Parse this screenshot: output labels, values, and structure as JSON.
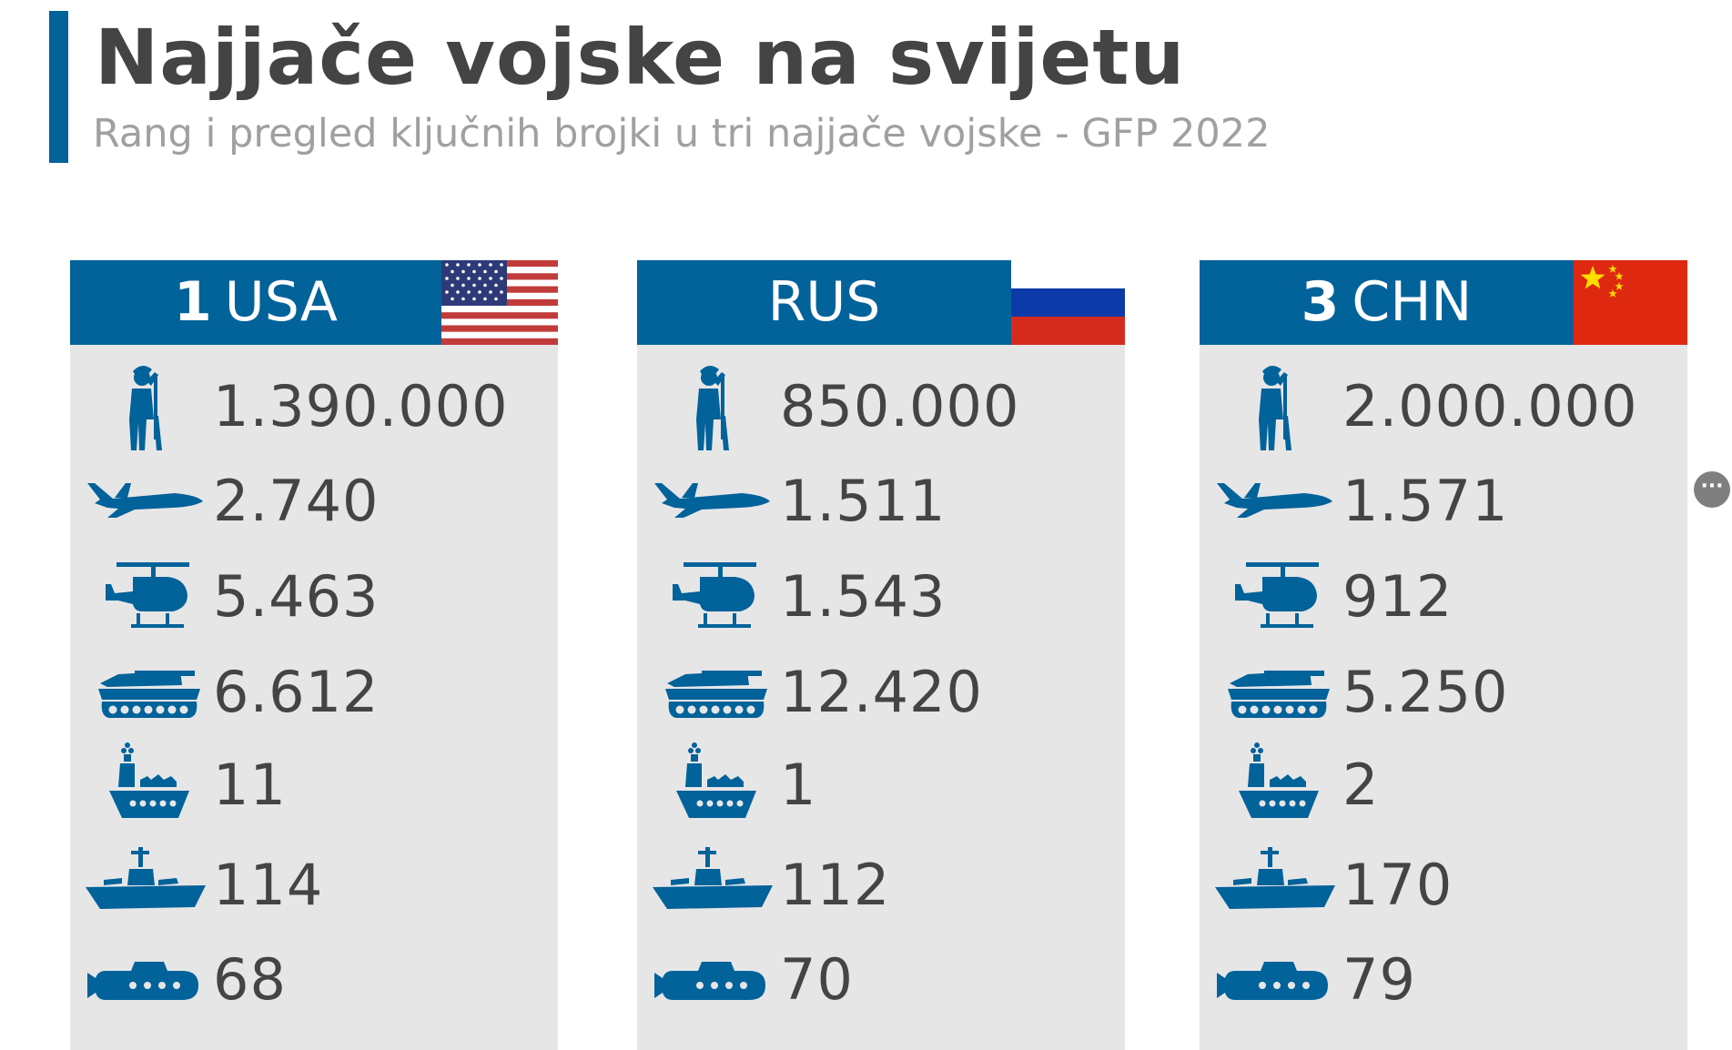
{
  "title": "Najjače vojske na svijetu",
  "subtitle": "Rang i pregled ključnih brojki u tri najjače vojske - GFP 2022",
  "colors": {
    "accent": "#02629a",
    "card_bg": "#e6e6e7",
    "text": "#444444",
    "subtitle": "#a0a0a0"
  },
  "icons": [
    "soldier-icon",
    "fighter-jet-icon",
    "helicopter-icon",
    "tank-icon",
    "aircraft-carrier-icon",
    "warship-icon",
    "submarine-icon"
  ],
  "cards": [
    {
      "rank": "1",
      "code": "USA",
      "flag": "usa-flag",
      "values": [
        "1.390.000",
        "2.740",
        "5.463",
        "6.612",
        "11",
        "114",
        "68"
      ]
    },
    {
      "rank": "",
      "code": "RUS",
      "flag": "russia-flag",
      "values": [
        "850.000",
        "1.511",
        "1.543",
        "12.420",
        "1",
        "112",
        "70"
      ]
    },
    {
      "rank": "3",
      "code": "CHN",
      "flag": "china-flag",
      "values": [
        "2.000.000",
        "1.571",
        "912",
        "5.250",
        "2",
        "170",
        "79"
      ]
    }
  ],
  "more_button": {
    "label": "···"
  }
}
